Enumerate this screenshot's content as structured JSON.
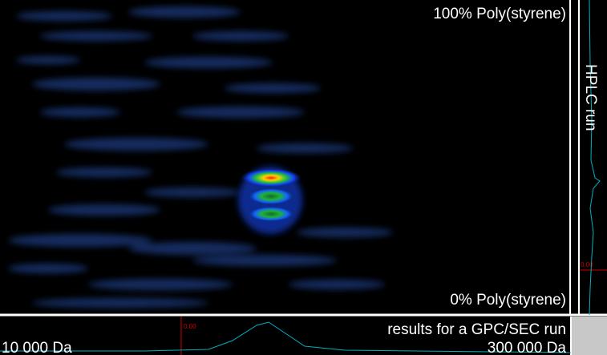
{
  "plot": {
    "top_label": "100% Poly(styrene)",
    "bottom_label": "0% Poly(styrene)"
  },
  "side_panel": {
    "title": "HPLC run",
    "marker": "0.00"
  },
  "bottom_panel": {
    "title": "results for a GPC/SEC run",
    "marker": "0.00",
    "left_label": "10 000 Da",
    "right_label": "300 000 Da"
  }
}
